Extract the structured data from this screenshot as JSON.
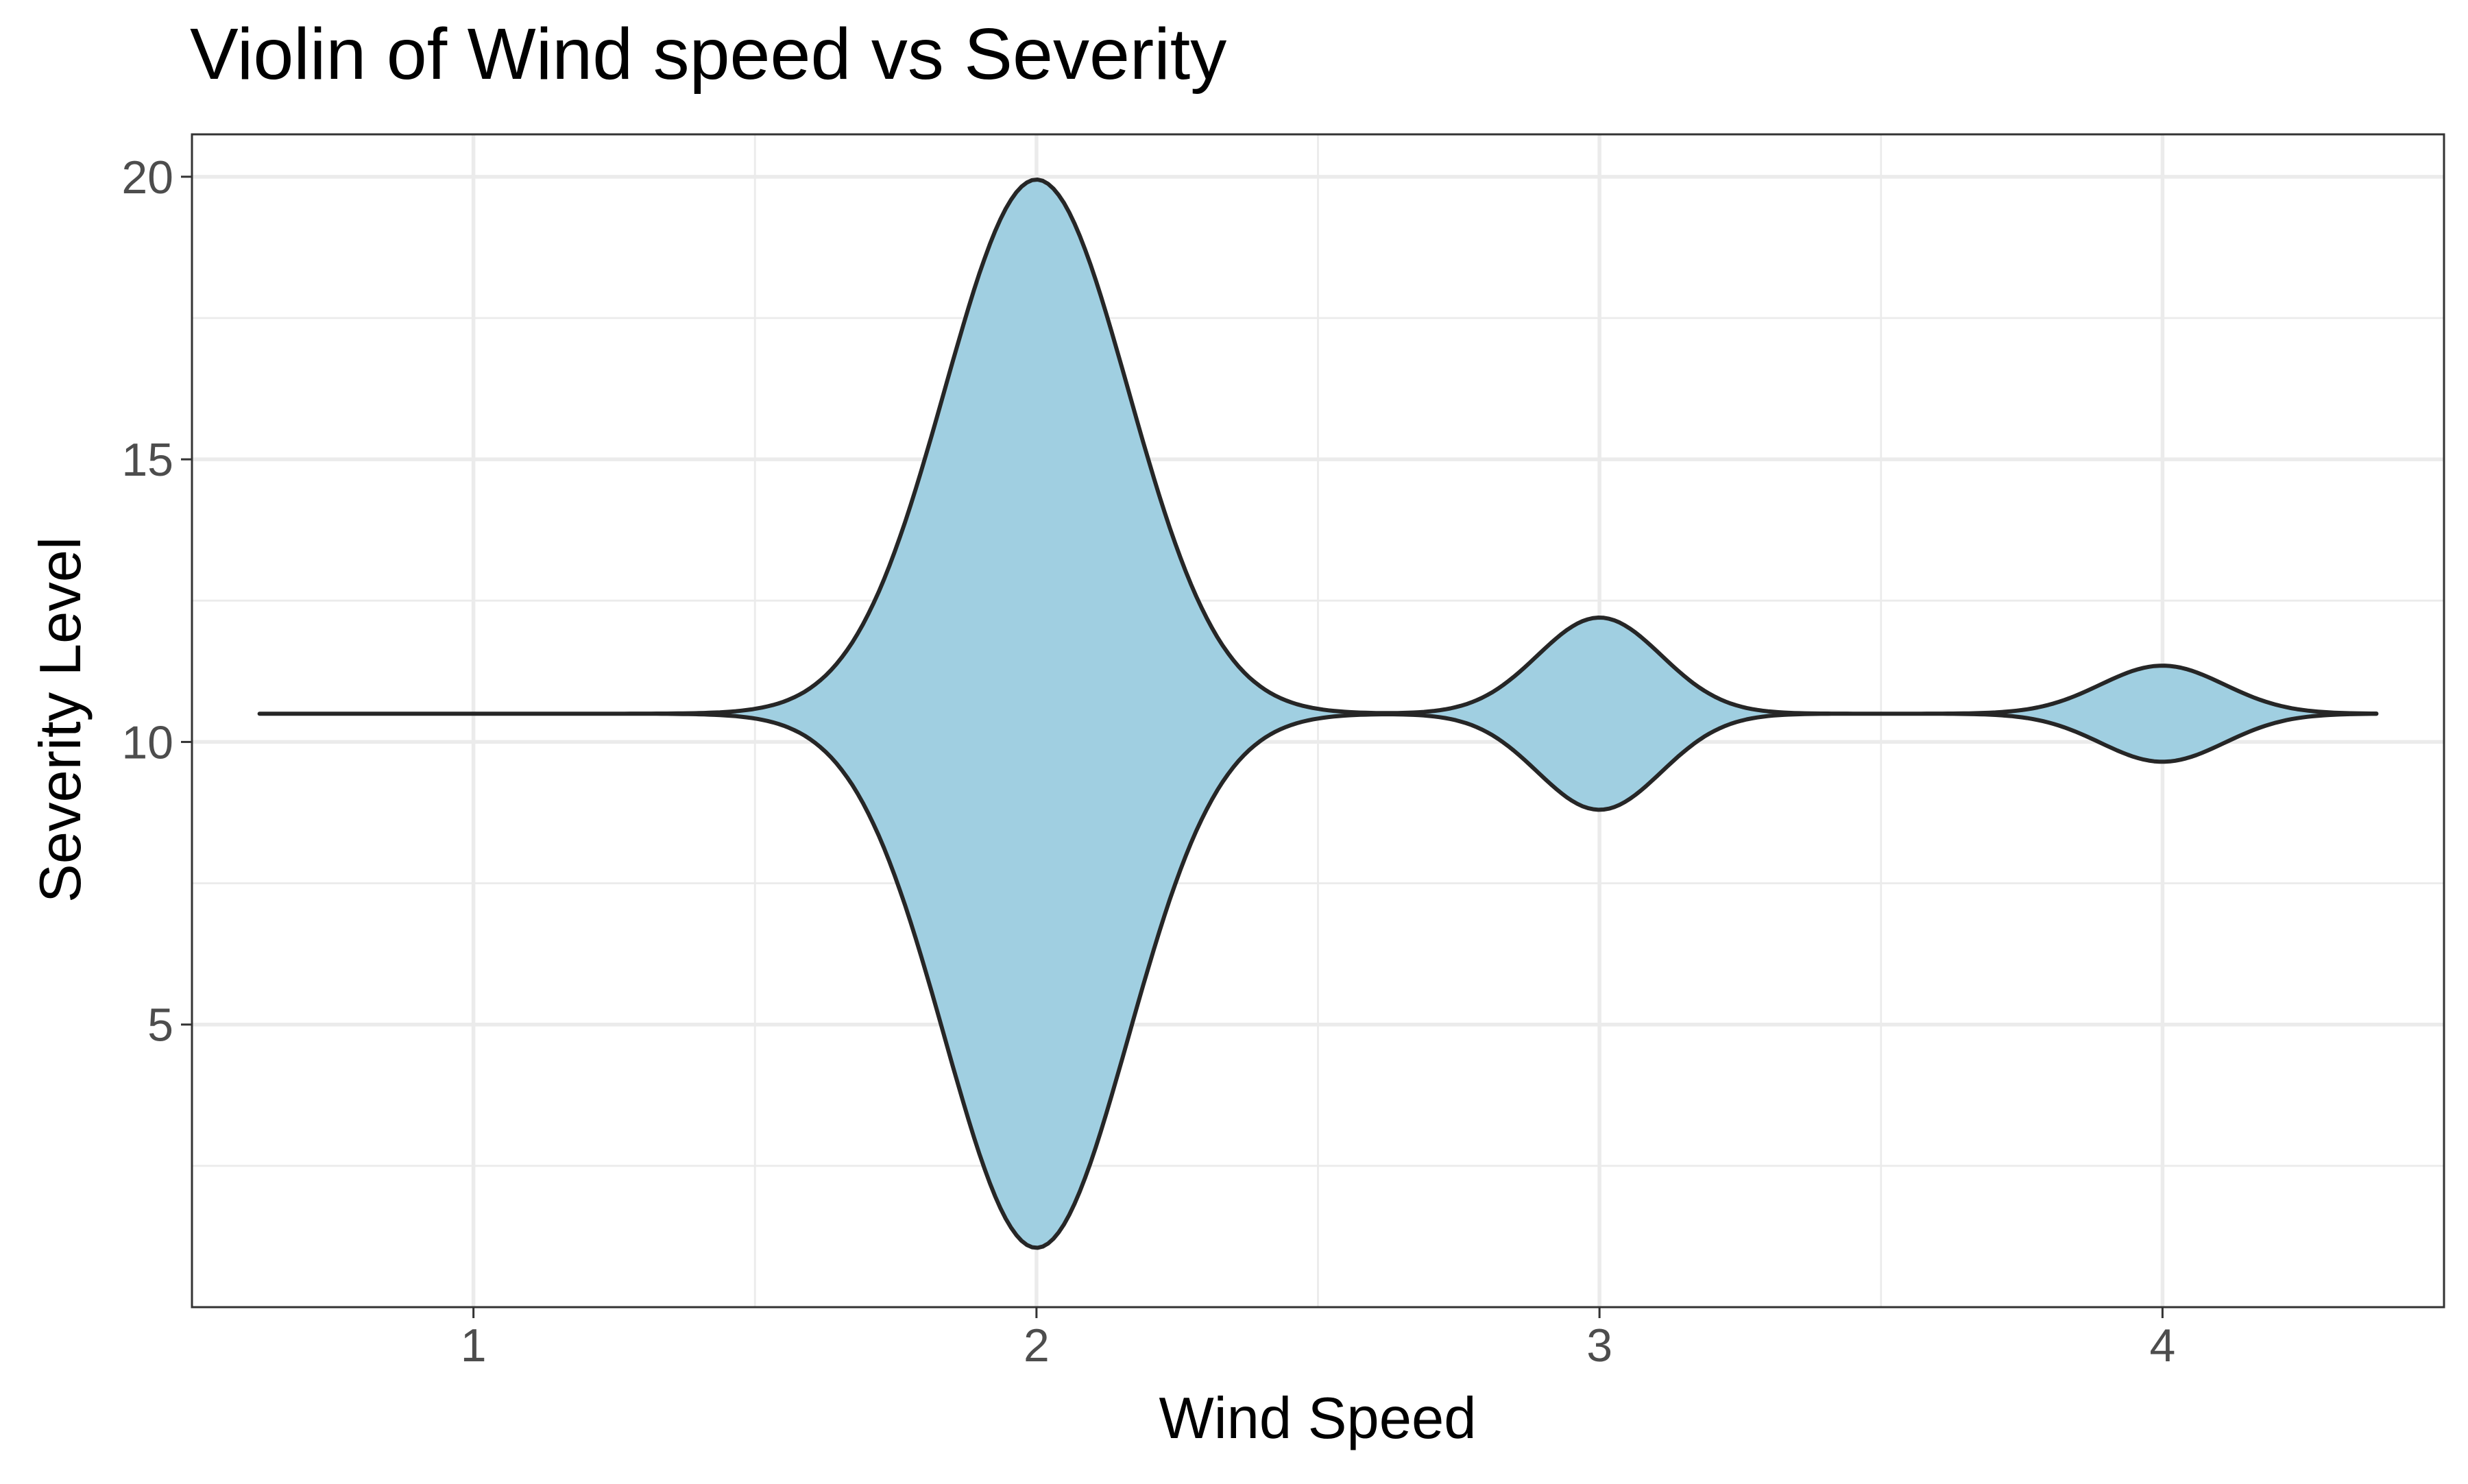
{
  "chart_data": {
    "type": "violin",
    "title": "Violin of Wind speed vs Severity",
    "xlabel": "Wind Speed",
    "ylabel": "Severity Level",
    "x_ticks": [
      1,
      2,
      3,
      4
    ],
    "y_ticks": [
      5,
      10,
      15,
      20
    ],
    "xlim": [
      0.5,
      4.5
    ],
    "ylim": [
      0,
      20.75
    ],
    "grid": true,
    "fill_color": "#a0cfe1",
    "line_color": "#262626",
    "center_y": 10.5,
    "x_start": 0.62,
    "x_end": 4.38,
    "components": [
      {
        "x": 2,
        "max_half_width": 9.45,
        "spread": 0.163
      },
      {
        "x": 3,
        "max_half_width": 1.7,
        "spread": 0.11
      },
      {
        "x": 4,
        "max_half_width": 0.85,
        "spread": 0.11
      }
    ]
  }
}
